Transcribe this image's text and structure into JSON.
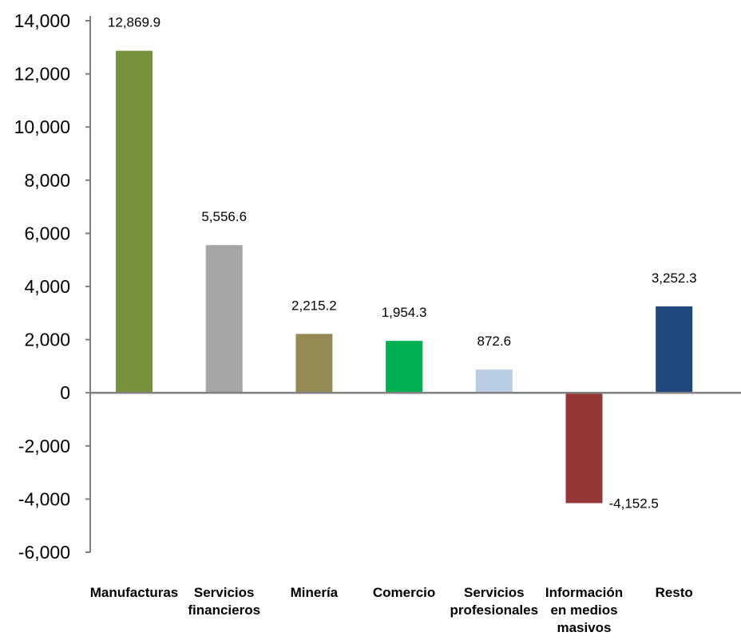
{
  "chart_data": {
    "type": "bar",
    "title": "",
    "xlabel": "",
    "ylabel": "",
    "ylim": [
      -6000,
      14000
    ],
    "yticks": [
      14000,
      12000,
      10000,
      8000,
      6000,
      4000,
      2000,
      0,
      -2000,
      -4000,
      -6000
    ],
    "ytick_labels": [
      "14,000",
      "12,000",
      "10,000",
      "8,000",
      "6,000",
      "4,000",
      "2,000",
      "0",
      "-2,000",
      "-4,000",
      "-6,000"
    ],
    "grid": false,
    "legend": "none",
    "categories": [
      [
        "Manufacturas"
      ],
      [
        "Servicios",
        "financieros"
      ],
      [
        "Minería"
      ],
      [
        "Comercio"
      ],
      [
        "Servicios",
        "profesionales"
      ],
      [
        "Información",
        "en medios",
        "masivos"
      ],
      [
        "Resto"
      ]
    ],
    "values": [
      12869.9,
      5556.6,
      2215.2,
      1954.3,
      872.6,
      -4152.5,
      3252.3
    ],
    "value_labels": [
      "12,869.9",
      "5,556.6",
      "2,215.2",
      "1,954.3",
      "872.6",
      "-4,152.5",
      "3,252.3"
    ],
    "colors": [
      "#76933C",
      "#A6A6A6",
      "#948A54",
      "#00B050",
      "#B8CCE4",
      "#953735",
      "#1F497D"
    ],
    "axis_color": "#808080"
  }
}
